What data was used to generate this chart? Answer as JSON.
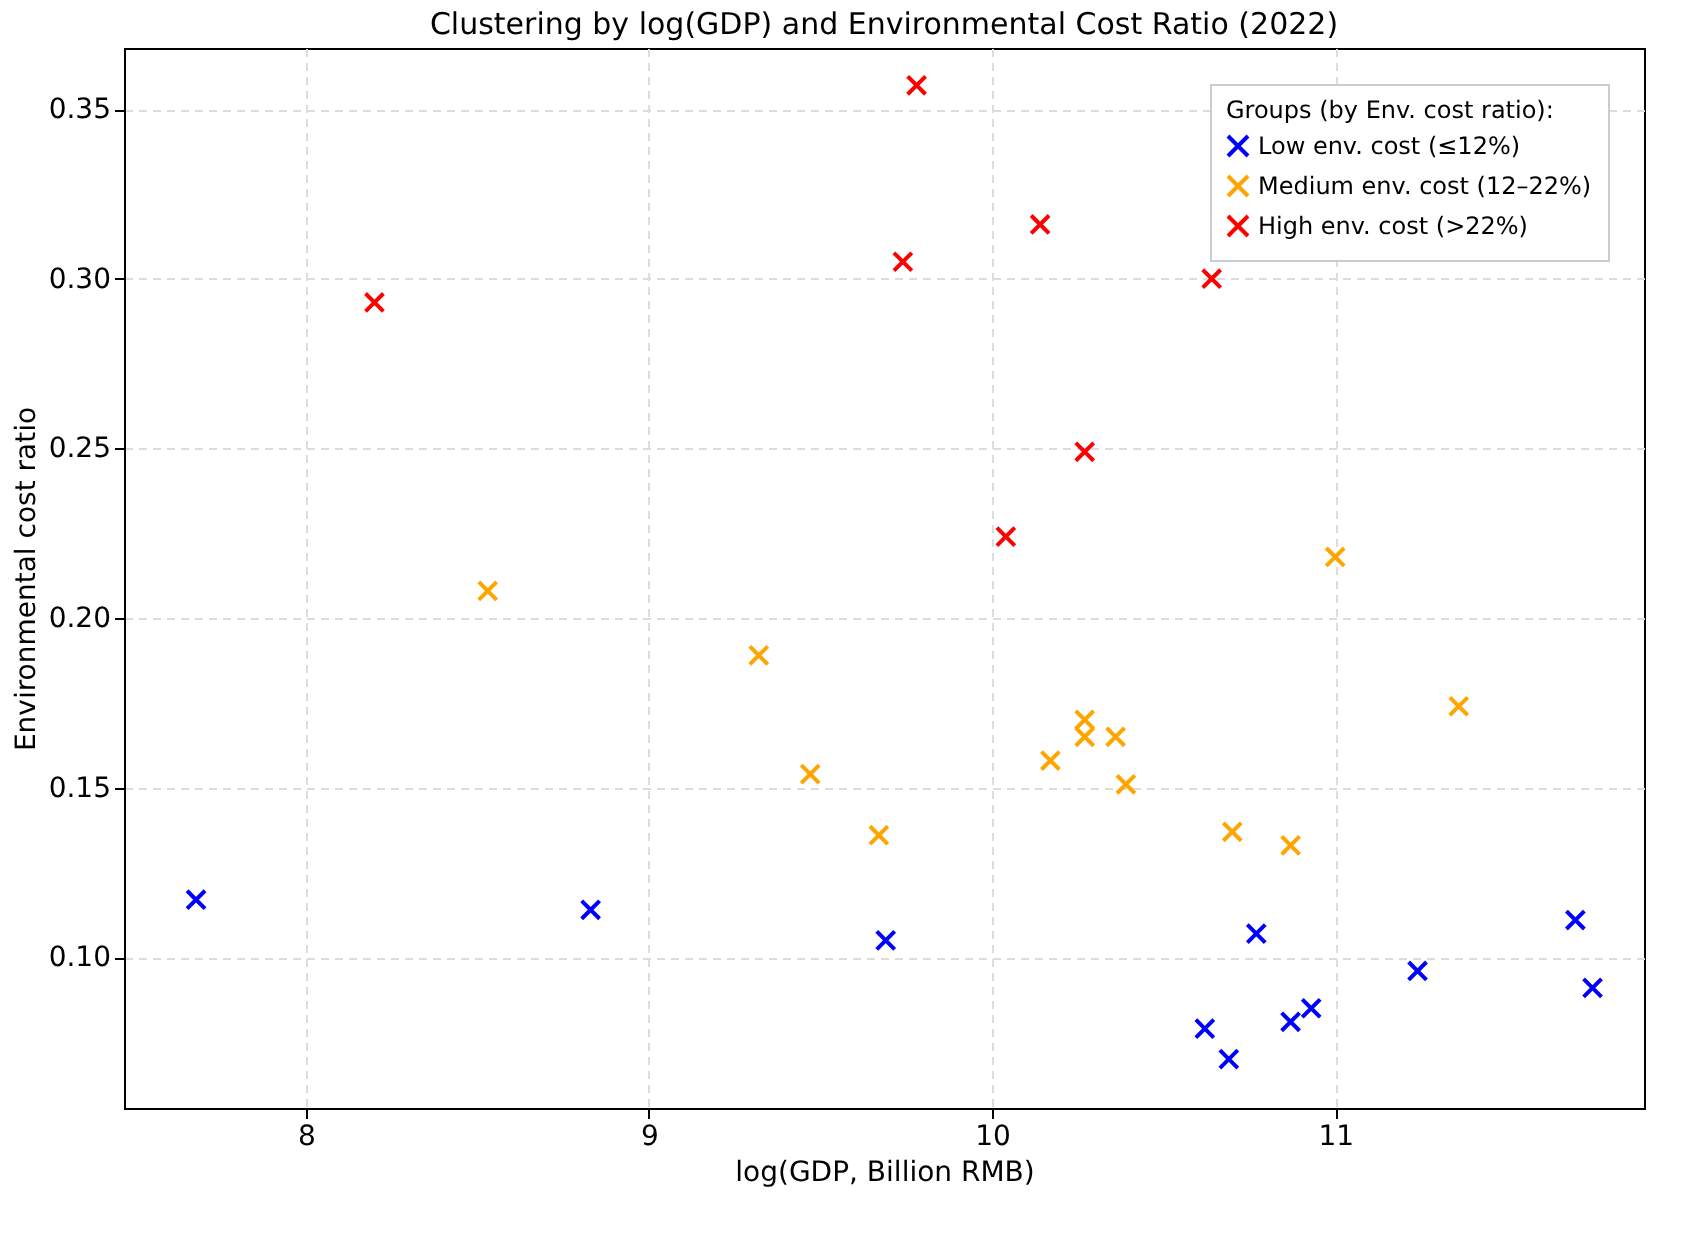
{
  "chart_data": {
    "type": "scatter",
    "title": "Clustering by log(GDP) and Environmental Cost Ratio (2022)",
    "xlabel": "log(GDP, Billion RMB)",
    "ylabel": "Environmental cost ratio",
    "legend_title": "Groups (by Env. cost ratio):",
    "legend": "top right",
    "grid": true,
    "marker": "cross",
    "xlim": [
      7.47,
      11.9
    ],
    "xticks": [
      8,
      9,
      10,
      11
    ],
    "ylim": [
      0.0556,
      0.368
    ],
    "yticks": [
      {
        "value": 0.1,
        "label": "0.10"
      },
      {
        "value": 0.15,
        "label": "0.15"
      },
      {
        "value": 0.2,
        "label": "0.20"
      },
      {
        "value": 0.25,
        "label": "0.25"
      },
      {
        "value": 0.3,
        "label": "0.30"
      },
      {
        "value": 0.35,
        "label": "0.35"
      }
    ],
    "series": [
      {
        "name": "Low env. cost (≤12%)",
        "color": "#0000ff",
        "x": [
          7.68,
          8.83,
          9.69,
          10.62,
          10.69,
          10.77,
          10.87,
          10.93,
          11.24,
          11.7,
          11.75
        ],
        "values": [
          0.117,
          0.114,
          0.105,
          0.079,
          0.07,
          0.107,
          0.081,
          0.085,
          0.096,
          0.111,
          0.091
        ]
      },
      {
        "name": "Medium env. cost (12–22%)",
        "color": "#ffa500",
        "x": [
          8.53,
          9.32,
          9.47,
          9.67,
          10.17,
          10.27,
          10.27,
          10.36,
          10.39,
          10.7,
          10.87,
          11.0,
          11.36
        ],
        "values": [
          0.208,
          0.189,
          0.154,
          0.136,
          0.158,
          0.17,
          0.165,
          0.165,
          0.151,
          0.137,
          0.133,
          0.218,
          0.174
        ]
      },
      {
        "name": "High env. cost (>22%)",
        "color": "#ff0000",
        "x": [
          8.2,
          9.78,
          9.74,
          10.14,
          10.64,
          10.27,
          10.04
        ],
        "values": [
          0.293,
          0.357,
          0.305,
          0.316,
          0.3,
          0.249,
          0.224
        ]
      }
    ]
  }
}
